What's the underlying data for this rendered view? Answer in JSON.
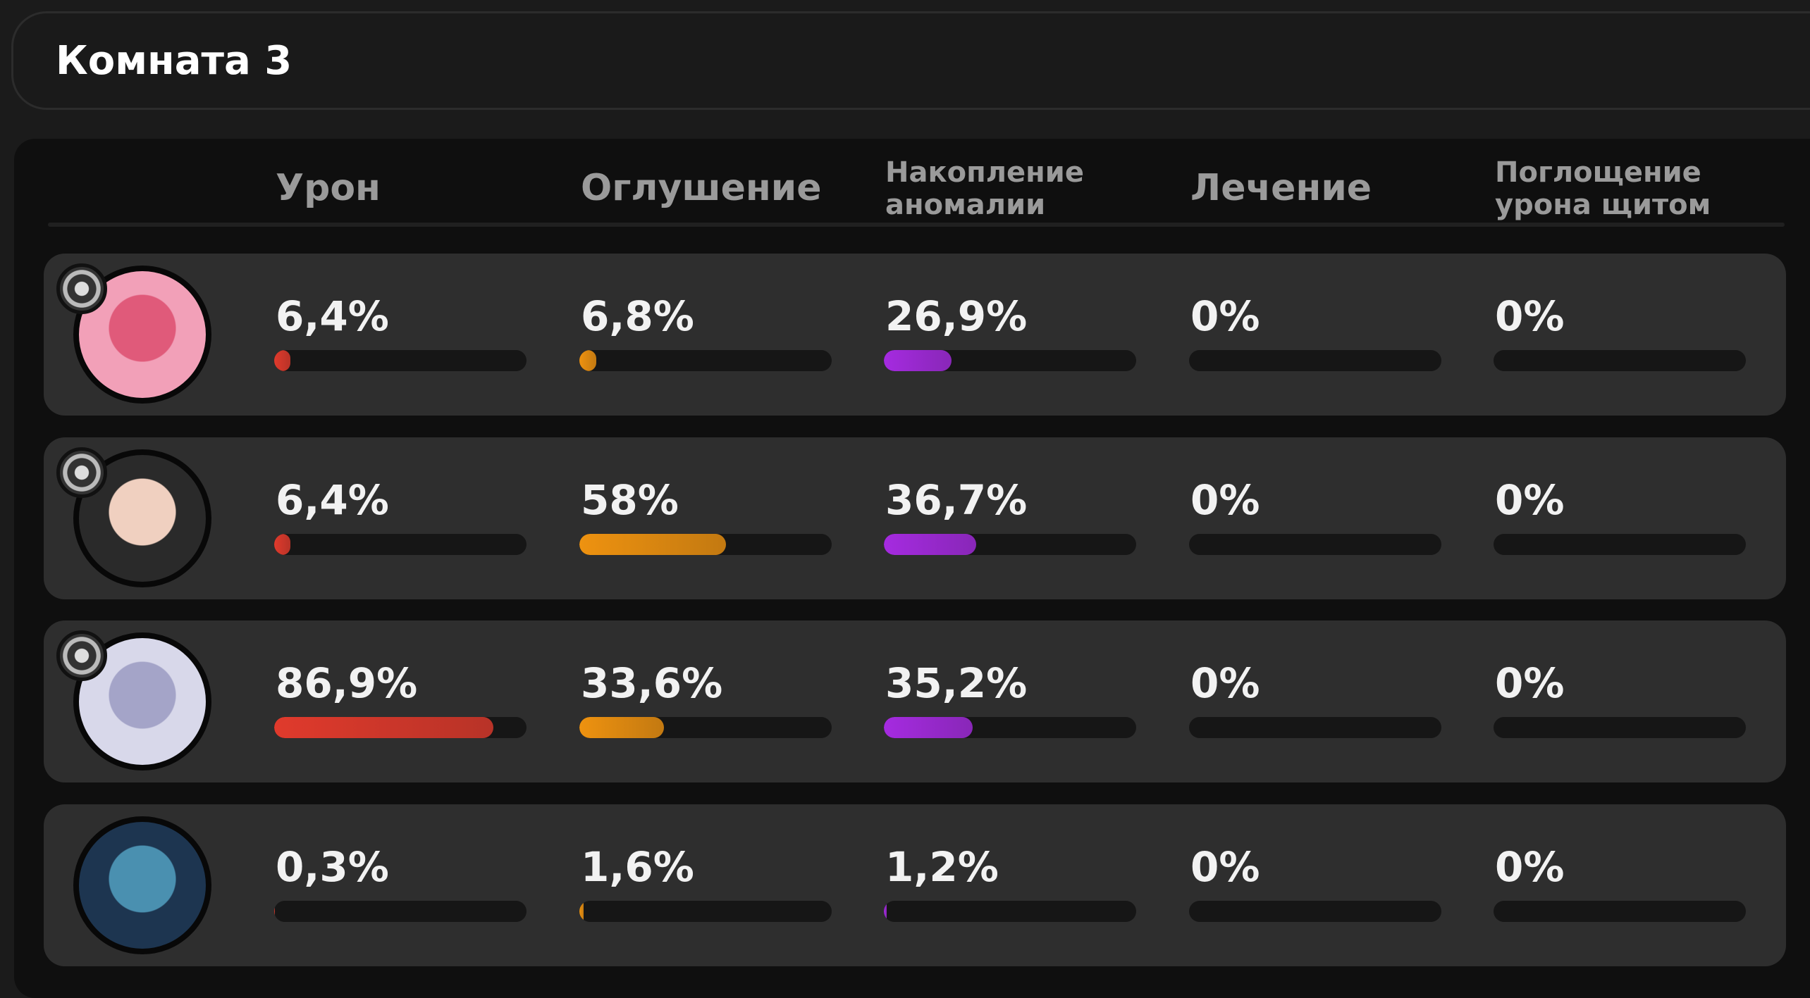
{
  "header": {
    "title": "Комната 3"
  },
  "table": {
    "columns": [
      {
        "label": [
          "Урон"
        ],
        "color": "#e03a2c"
      },
      {
        "label": [
          "Оглушение"
        ],
        "color": "#ee9210"
      },
      {
        "label": [
          "Накопление",
          "аномалии"
        ],
        "color": "#a52be0"
      },
      {
        "label": [
          "Лечение"
        ],
        "color": "#3fbf6a"
      },
      {
        "label": [
          "Поглощение",
          "урона щитом"
        ],
        "color": "#3f9fe0"
      }
    ],
    "rows": [
      {
        "values": [
          6.4,
          6.8,
          26.9,
          0,
          0
        ],
        "value_labels": [
          "6,4%",
          "6,8%",
          "26,9%",
          "0%",
          "0%"
        ]
      },
      {
        "values": [
          6.4,
          58,
          36.7,
          0,
          0
        ],
        "value_labels": [
          "6,4%",
          "58%",
          "36,7%",
          "0%",
          "0%"
        ]
      },
      {
        "values": [
          86.9,
          33.6,
          35.2,
          0,
          0
        ],
        "value_labels": [
          "86,9%",
          "33,6%",
          "35,2%",
          "0%",
          "0%"
        ]
      },
      {
        "values": [
          0.3,
          1.6,
          1.2,
          0,
          0
        ],
        "value_labels": [
          "0,3%",
          "1,6%",
          "1,2%",
          "0%",
          "0%"
        ]
      }
    ]
  }
}
